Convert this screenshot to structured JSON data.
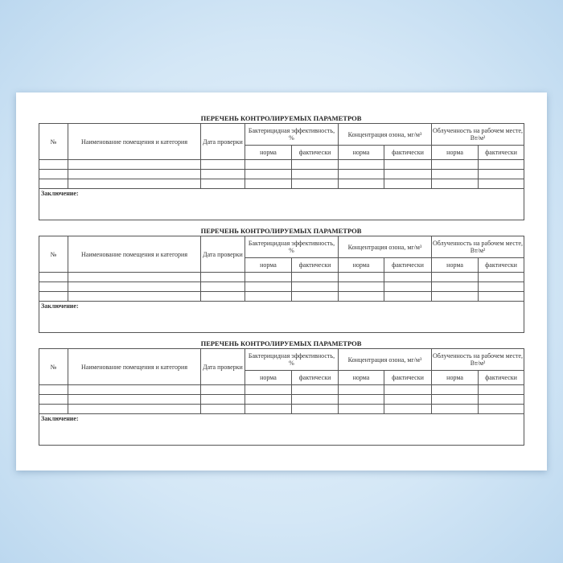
{
  "forms": [
    {
      "title": "ПЕРЕЧЕНЬ КОНТРОЛИРУЕМЫХ ПАРАМЕТРОВ"
    },
    {
      "title": "ПЕРЕЧЕНЬ КОНТРОЛИРУЕМЫХ ПАРАМЕТРОВ"
    },
    {
      "title": "ПЕРЕЧЕНЬ КОНТРОЛИРУЕМЫХ ПАРАМЕТРОВ"
    }
  ],
  "columns": {
    "number": "№",
    "room": "Наименование помещения и категория",
    "date": "Дата проверки",
    "groups": [
      "Бактерицидная эффективность, %",
      "Концентрация озона, мг/м³",
      "Облученность на рабочем месте, Вт/м²"
    ],
    "norm": "норма",
    "actual": "фактически"
  },
  "data_rows": 3,
  "conclusion_label": "Заключение:"
}
